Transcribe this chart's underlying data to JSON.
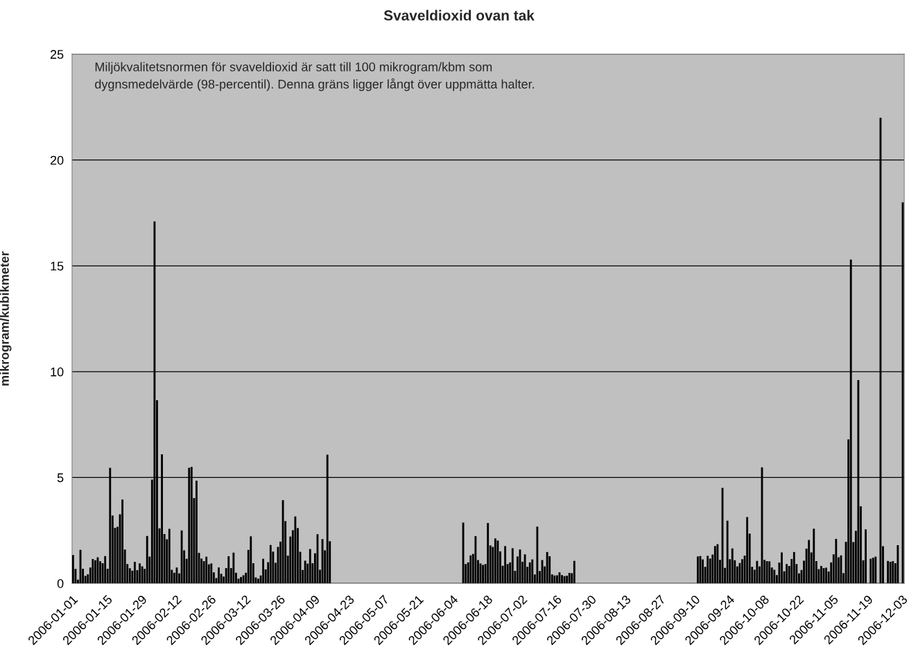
{
  "chart_data": {
    "type": "bar",
    "title": "Svaveldioxid ovan tak",
    "ylabel": "mikrogram/kubikmeter",
    "annotations": [
      "Miljökvalitetsnormen för svaveldioxid är satt till 100 mikrogram/kbm som\ndygnsmedelvärde (98-percentil). Denna gräns ligger långt över uppmätta halter."
    ],
    "color": "#000000",
    "grid": "y",
    "xlim": [
      "2006-01-01",
      "2006-12-04"
    ],
    "ylim": [
      0,
      25
    ],
    "yticks": [
      0,
      5,
      10,
      15,
      20,
      25
    ],
    "xticks": [
      "2006-01-01",
      "2006-01-15",
      "2006-01-29",
      "2006-02-12",
      "2006-02-26",
      "2006-03-12",
      "2006-03-26",
      "2006-04-09",
      "2006-04-23",
      "2006-05-07",
      "2006-05-21",
      "2006-06-04",
      "2006-06-18",
      "2006-07-02",
      "2006-07-16",
      "2006-07-30",
      "2006-08-13",
      "2006-08-27",
      "2006-09-10",
      "2006-09-24",
      "2006-10-08",
      "2006-10-22",
      "2006-11-05",
      "2006-11-19",
      "2006-12-03"
    ],
    "x": [
      "2006-01-01",
      "2006-01-02",
      "2006-01-03",
      "2006-01-04",
      "2006-01-05",
      "2006-01-06",
      "2006-01-07",
      "2006-01-08",
      "2006-01-09",
      "2006-01-10",
      "2006-01-11",
      "2006-01-12",
      "2006-01-13",
      "2006-01-14",
      "2006-01-15",
      "2006-01-16",
      "2006-01-17",
      "2006-01-18",
      "2006-01-19",
      "2006-01-20",
      "2006-01-21",
      "2006-01-22",
      "2006-01-23",
      "2006-01-24",
      "2006-01-25",
      "2006-01-26",
      "2006-01-27",
      "2006-01-28",
      "2006-01-29",
      "2006-01-30",
      "2006-01-31",
      "2006-02-01",
      "2006-02-02",
      "2006-02-03",
      "2006-02-04",
      "2006-02-05",
      "2006-02-06",
      "2006-02-07",
      "2006-02-08",
      "2006-02-09",
      "2006-02-10",
      "2006-02-11",
      "2006-02-12",
      "2006-02-13",
      "2006-02-14",
      "2006-02-15",
      "2006-02-16",
      "2006-02-17",
      "2006-02-18",
      "2006-02-19",
      "2006-02-20",
      "2006-02-21",
      "2006-02-22",
      "2006-02-23",
      "2006-02-24",
      "2006-02-25",
      "2006-02-26",
      "2006-02-27",
      "2006-02-28",
      "2006-03-01",
      "2006-03-02",
      "2006-03-03",
      "2006-03-04",
      "2006-03-05",
      "2006-03-06",
      "2006-03-07",
      "2006-03-08",
      "2006-03-09",
      "2006-03-10",
      "2006-03-11",
      "2006-03-12",
      "2006-03-13",
      "2006-03-14",
      "2006-03-15",
      "2006-03-16",
      "2006-03-17",
      "2006-03-18",
      "2006-03-19",
      "2006-03-20",
      "2006-03-21",
      "2006-03-22",
      "2006-03-23",
      "2006-03-24",
      "2006-03-25",
      "2006-03-26",
      "2006-03-27",
      "2006-03-28",
      "2006-03-29",
      "2006-03-30",
      "2006-03-31",
      "2006-04-01",
      "2006-04-02",
      "2006-04-03",
      "2006-04-04",
      "2006-04-05",
      "2006-04-06",
      "2006-04-07",
      "2006-04-08",
      "2006-04-09",
      "2006-04-10",
      "2006-04-11",
      "2006-04-12",
      "2006-04-13",
      "2006-04-14",
      "2006-04-15",
      "2006-06-08",
      "2006-06-09",
      "2006-06-10",
      "2006-06-11",
      "2006-06-12",
      "2006-06-13",
      "2006-06-14",
      "2006-06-15",
      "2006-06-16",
      "2006-06-17",
      "2006-06-18",
      "2006-06-19",
      "2006-06-20",
      "2006-06-21",
      "2006-06-22",
      "2006-06-23",
      "2006-06-24",
      "2006-06-25",
      "2006-06-26",
      "2006-06-27",
      "2006-06-28",
      "2006-06-29",
      "2006-06-30",
      "2006-07-01",
      "2006-07-02",
      "2006-07-03",
      "2006-07-04",
      "2006-07-05",
      "2006-07-06",
      "2006-07-07",
      "2006-07-08",
      "2006-07-09",
      "2006-07-10",
      "2006-07-11",
      "2006-07-12",
      "2006-07-13",
      "2006-07-14",
      "2006-07-15",
      "2006-07-16",
      "2006-07-17",
      "2006-07-18",
      "2006-07-19",
      "2006-07-20",
      "2006-07-21",
      "2006-07-22",
      "2006-07-23",
      "2006-09-11",
      "2006-09-12",
      "2006-09-13",
      "2006-09-14",
      "2006-09-15",
      "2006-09-16",
      "2006-09-17",
      "2006-09-18",
      "2006-09-19",
      "2006-09-20",
      "2006-09-21",
      "2006-09-22",
      "2006-09-23",
      "2006-09-24",
      "2006-09-25",
      "2006-09-26",
      "2006-09-27",
      "2006-09-28",
      "2006-09-29",
      "2006-09-30",
      "2006-10-01",
      "2006-10-02",
      "2006-10-03",
      "2006-10-04",
      "2006-10-05",
      "2006-10-06",
      "2006-10-07",
      "2006-10-08",
      "2006-10-09",
      "2006-10-10",
      "2006-10-11",
      "2006-10-12",
      "2006-10-13",
      "2006-10-14",
      "2006-10-15",
      "2006-10-16",
      "2006-10-17",
      "2006-10-18",
      "2006-10-19",
      "2006-10-20",
      "2006-10-21",
      "2006-10-22",
      "2006-10-23",
      "2006-10-24",
      "2006-10-25",
      "2006-10-26",
      "2006-10-27",
      "2006-10-28",
      "2006-10-29",
      "2006-10-30",
      "2006-10-31",
      "2006-11-01",
      "2006-11-02",
      "2006-11-03",
      "2006-11-04",
      "2006-11-05",
      "2006-11-06",
      "2006-11-07",
      "2006-11-08",
      "2006-11-09",
      "2006-11-10",
      "2006-11-11",
      "2006-11-12",
      "2006-11-13",
      "2006-11-14",
      "2006-11-15",
      "2006-11-16",
      "2006-11-17",
      "2006-11-18",
      "2006-11-19",
      "2006-11-20",
      "2006-11-21",
      "2006-11-22",
      "2006-11-23",
      "2006-11-24",
      "2006-11-25",
      "2006-11-26",
      "2006-11-27",
      "2006-11-28",
      "2006-11-29",
      "2006-11-30",
      "2006-12-01",
      "2006-12-02",
      "2006-12-03"
    ],
    "values": [
      1.34,
      0.68,
      0.17,
      1.58,
      0.69,
      0.35,
      0.43,
      0.75,
      1.15,
      1.09,
      1.23,
      1.04,
      0.95,
      1.29,
      0.69,
      5.46,
      3.2,
      2.62,
      2.67,
      3.26,
      3.96,
      1.6,
      0.91,
      0.71,
      0.6,
      1.02,
      0.62,
      0.94,
      0.8,
      0.68,
      2.24,
      1.26,
      4.9,
      17.1,
      8.65,
      2.6,
      6.1,
      2.33,
      2.08,
      2.57,
      0.64,
      0.5,
      0.75,
      0.47,
      2.5,
      1.56,
      1.16,
      5.46,
      5.5,
      4.03,
      4.85,
      1.44,
      1.17,
      1.05,
      1.26,
      0.9,
      0.94,
      0.52,
      0.25,
      0.75,
      0.45,
      0.32,
      0.72,
      1.28,
      0.72,
      1.45,
      0.5,
      0.22,
      0.3,
      0.38,
      0.5,
      1.58,
      2.22,
      0.95,
      0.28,
      0.22,
      0.37,
      1.16,
      0.66,
      1.0,
      1.81,
      1.5,
      0.97,
      1.72,
      1.97,
      3.93,
      2.94,
      1.31,
      2.21,
      2.51,
      3.16,
      2.61,
      1.49,
      0.63,
      1.07,
      0.93,
      1.62,
      0.95,
      1.42,
      2.32,
      0.64,
      2.09,
      1.56,
      6.08,
      1.99,
      2.87,
      0.91,
      0.99,
      1.32,
      1.39,
      2.23,
      1.1,
      0.94,
      0.87,
      0.91,
      2.85,
      1.79,
      1.72,
      2.12,
      2.02,
      1.51,
      0.83,
      1.76,
      0.91,
      0.99,
      1.66,
      0.59,
      1.27,
      1.6,
      1.02,
      1.37,
      0.78,
      0.99,
      1.13,
      0.42,
      2.68,
      0.58,
      1.1,
      0.8,
      1.48,
      1.28,
      0.42,
      0.37,
      0.38,
      0.52,
      0.39,
      0.34,
      0.36,
      0.49,
      0.48,
      1.06,
      1.27,
      1.29,
      1.13,
      0.78,
      1.3,
      1.17,
      1.36,
      1.76,
      1.85,
      1.11,
      4.51,
      0.73,
      2.96,
      1.14,
      1.65,
      1.09,
      0.8,
      0.96,
      1.14,
      1.31,
      3.13,
      2.35,
      0.78,
      0.64,
      1.06,
      0.8,
      5.48,
      1.11,
      1.05,
      1.04,
      0.75,
      0.64,
      0.39,
      0.98,
      1.46,
      0.57,
      0.91,
      0.82,
      1.15,
      1.48,
      0.91,
      0.47,
      0.63,
      1.07,
      1.64,
      2.05,
      1.46,
      2.58,
      1.05,
      0.67,
      0.82,
      0.72,
      0.74,
      0.56,
      0.99,
      1.37,
      2.1,
      1.23,
      1.32,
      0.48,
      1.96,
      6.8,
      15.3,
      1.95,
      2.48,
      9.6,
      3.64,
      1.09,
      2.55,
      null,
      1.16,
      1.21,
      1.26,
      null,
      22.0,
      1.75,
      null,
      1.06,
      1.02,
      1.05,
      0.95,
      1.8,
      null,
      18.0
    ]
  }
}
